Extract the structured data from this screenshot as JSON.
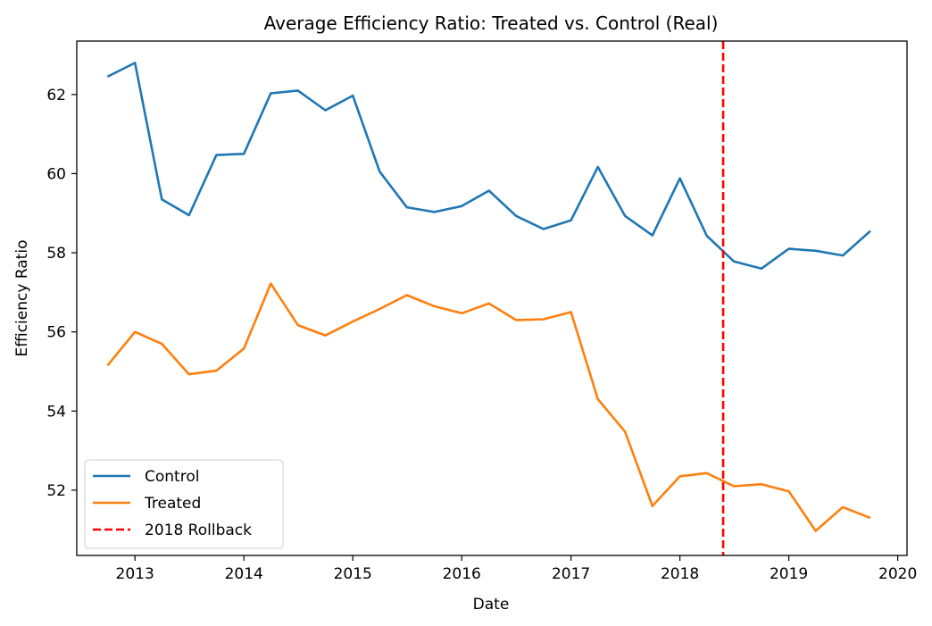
{
  "chart_data": {
    "type": "line",
    "title": "Average Efficiency Ratio: Treated vs. Control (Real)",
    "xlabel": "Date",
    "ylabel": "Efficiency Ratio",
    "xlim": [
      "2012-06-20",
      "2020-02-01"
    ],
    "ylim": [
      50.35,
      63.35
    ],
    "x_ticks": [
      "2013",
      "2014",
      "2015",
      "2016",
      "2017",
      "2018",
      "2019",
      "2020"
    ],
    "y_ticks": [
      52,
      54,
      56,
      58,
      60,
      62
    ],
    "grid": false,
    "legend_position": "lower-left",
    "x": [
      "2012-10-01",
      "2013-01-01",
      "2013-04-01",
      "2013-07-01",
      "2013-10-01",
      "2014-01-01",
      "2014-04-01",
      "2014-07-01",
      "2014-10-01",
      "2015-01-01",
      "2015-04-01",
      "2015-07-01",
      "2015-10-01",
      "2016-01-01",
      "2016-04-01",
      "2016-07-01",
      "2016-10-01",
      "2017-01-01",
      "2017-04-01",
      "2017-07-01",
      "2017-10-01",
      "2018-01-01",
      "2018-04-01",
      "2018-07-01",
      "2018-10-01",
      "2019-01-01",
      "2019-04-01",
      "2019-07-01",
      "2019-10-01"
    ],
    "series": [
      {
        "name": "Control",
        "color": "#1f77b4",
        "style": "solid",
        "values": [
          62.45,
          62.8,
          59.35,
          58.95,
          60.47,
          60.5,
          62.03,
          62.1,
          61.6,
          61.97,
          60.05,
          59.15,
          59.03,
          59.18,
          59.57,
          58.93,
          58.6,
          58.82,
          60.17,
          58.93,
          58.44,
          59.88,
          58.43,
          57.78,
          57.6,
          58.1,
          58.05,
          57.93,
          58.55
        ]
      },
      {
        "name": "Treated",
        "color": "#ff7f0e",
        "style": "solid",
        "values": [
          55.15,
          56.0,
          55.7,
          54.93,
          55.02,
          55.58,
          57.22,
          56.17,
          55.91,
          56.26,
          56.58,
          56.93,
          56.65,
          56.47,
          56.72,
          56.3,
          56.32,
          56.5,
          54.3,
          53.48,
          51.6,
          52.35,
          52.43,
          52.1,
          52.15,
          51.97,
          50.97,
          51.57,
          51.3
        ]
      }
    ],
    "vlines": [
      {
        "name": "2018 Rollback",
        "x": "2018-05-26",
        "color": "#ff0000",
        "style": "dashed"
      }
    ]
  }
}
